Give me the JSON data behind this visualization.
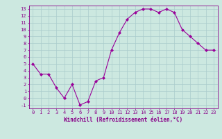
{
  "x": [
    0,
    1,
    2,
    3,
    4,
    5,
    6,
    7,
    8,
    9,
    10,
    11,
    12,
    13,
    14,
    15,
    16,
    17,
    18,
    19,
    20,
    21,
    22,
    23
  ],
  "y": [
    5,
    3.5,
    3.5,
    1.5,
    0,
    2,
    -1,
    -0.5,
    2.5,
    3,
    7,
    9.5,
    11.5,
    12.5,
    13,
    13,
    12.5,
    13,
    12.5,
    10,
    9,
    8,
    7,
    7
  ],
  "line_color": "#990099",
  "marker_color": "#990099",
  "bg_color": "#cce8e0",
  "grid_color": "#aacccc",
  "xlabel": "Windchill (Refroidissement éolien,°C)",
  "xlabel_color": "#880088",
  "xtick_color": "#880088",
  "ytick_color": "#880088",
  "ylim": [
    -1.5,
    13.5
  ],
  "xlim": [
    -0.5,
    23.5
  ],
  "yticks": [
    -1,
    0,
    1,
    2,
    3,
    4,
    5,
    6,
    7,
    8,
    9,
    10,
    11,
    12,
    13
  ],
  "xticks": [
    0,
    1,
    2,
    3,
    4,
    5,
    6,
    7,
    8,
    9,
    10,
    11,
    12,
    13,
    14,
    15,
    16,
    17,
    18,
    19,
    20,
    21,
    22,
    23
  ],
  "tick_fontsize": 5.0,
  "xlabel_fontsize": 5.5
}
